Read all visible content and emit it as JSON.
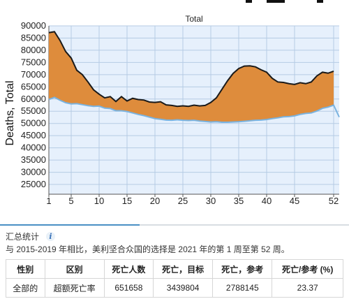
{
  "chart_data": {
    "type": "area",
    "title": "Total",
    "ylabel": "Deaths, Total",
    "xlabel": "",
    "xlim": [
      1,
      53
    ],
    "ylim": [
      21000,
      90000
    ],
    "xticks": [
      1,
      5,
      10,
      15,
      20,
      25,
      30,
      35,
      40,
      45,
      52
    ],
    "yticks": [
      25000,
      30000,
      35000,
      40000,
      45000,
      50000,
      55000,
      60000,
      65000,
      70000,
      75000,
      80000,
      85000,
      90000
    ],
    "grid": true,
    "colors": {
      "plot_bg": "#e6f0fc",
      "grid": "#b5cbe4",
      "excess_fill": "#de8c3c",
      "total_line": "#1a1a1a",
      "baseline_line": "#7ab3e0"
    },
    "series": [
      {
        "role": "total",
        "x": [
          1,
          2,
          3,
          4,
          5,
          6,
          7,
          8,
          9,
          10,
          11,
          12,
          13,
          14,
          15,
          16,
          17,
          18,
          19,
          20,
          21,
          22,
          23,
          24,
          25,
          26,
          27,
          28,
          29,
          30,
          31,
          32,
          33,
          34,
          35,
          36,
          37,
          38,
          39,
          40,
          41,
          42,
          43,
          44,
          45,
          46,
          47,
          48,
          49,
          50,
          51,
          52
        ],
        "values": [
          87200,
          87600,
          84000,
          79500,
          76800,
          71800,
          70000,
          67000,
          63800,
          62000,
          60500,
          61000,
          59000,
          61000,
          59200,
          60300,
          59800,
          59600,
          58800,
          58600,
          58900,
          57600,
          57400,
          57000,
          57200,
          57000,
          57500,
          57200,
          57400,
          58600,
          60500,
          64000,
          67500,
          70500,
          72500,
          73500,
          73600,
          73200,
          72000,
          71000,
          68500,
          67000,
          66800,
          66300,
          66000,
          66700,
          66300,
          67000,
          69500,
          71000,
          70600,
          71400
        ]
      },
      {
        "role": "baseline",
        "x": [
          1,
          2,
          3,
          4,
          5,
          6,
          7,
          8,
          9,
          10,
          11,
          12,
          13,
          14,
          15,
          16,
          17,
          18,
          19,
          20,
          21,
          22,
          23,
          24,
          25,
          26,
          27,
          28,
          29,
          30,
          31,
          32,
          33,
          34,
          35,
          36,
          37,
          38,
          39,
          40,
          41,
          42,
          43,
          44,
          45,
          46,
          47,
          48,
          49,
          50,
          51,
          52,
          53
        ],
        "values": [
          59800,
          60700,
          59500,
          58500,
          58000,
          58100,
          57700,
          57300,
          57000,
          57100,
          56300,
          56100,
          55200,
          55200,
          54900,
          54300,
          53700,
          53200,
          52600,
          52000,
          51700,
          51400,
          51300,
          51500,
          51300,
          51200,
          51300,
          51000,
          50800,
          50600,
          50700,
          50500,
          50500,
          50600,
          50700,
          50900,
          51100,
          51300,
          51400,
          51600,
          52000,
          52300,
          52700,
          52800,
          53100,
          53700,
          54100,
          54300,
          55100,
          56200,
          56700,
          57500,
          52600
        ]
      }
    ]
  },
  "summary": {
    "heading": "汇总统计",
    "info_icon": "info-icon",
    "description": "与 2015-2019 年相比，美利坚合众国的选择是 2021 年的第 1 周至第 52 周。",
    "columns": [
      "性别",
      "区别",
      "死亡人数",
      "死亡，目标",
      "死亡，参考",
      "死亡/参考 (%)"
    ],
    "rows": [
      [
        "全部的",
        "超额死亡率",
        "651658",
        "3439804",
        "2788145",
        "23.37"
      ]
    ]
  }
}
